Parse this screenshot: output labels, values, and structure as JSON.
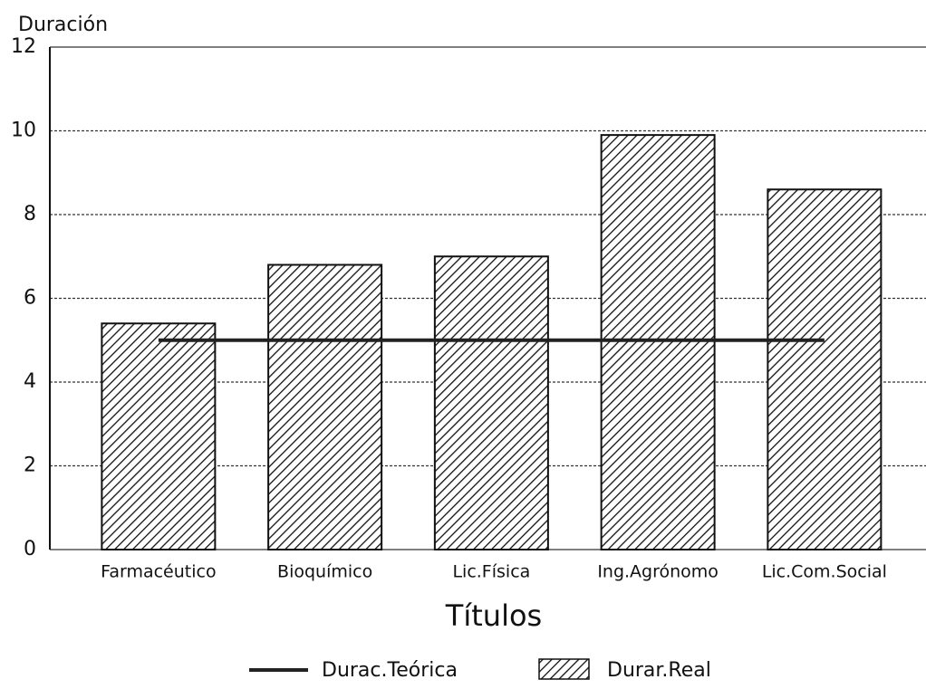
{
  "chart_data": {
    "type": "bar-line",
    "y_label": "Duración",
    "x_label": "Títulos",
    "categories": [
      "Farmacéutico",
      "Bioquímico",
      "Lic.Física",
      "Ing.Agrónomo",
      "Lic.Com.Social"
    ],
    "series": [
      {
        "name": "Durac.Teórica",
        "type": "line",
        "color": "#222222",
        "values": [
          5,
          5,
          5,
          5,
          5
        ]
      },
      {
        "name": "Durar.Real",
        "type": "bar",
        "color": "#111111",
        "values": [
          5.4,
          6.8,
          7.0,
          9.9,
          8.6
        ]
      }
    ],
    "ylim": [
      0,
      12
    ],
    "yticks": [
      0,
      2,
      4,
      6,
      8,
      10,
      12
    ],
    "grid": true
  }
}
